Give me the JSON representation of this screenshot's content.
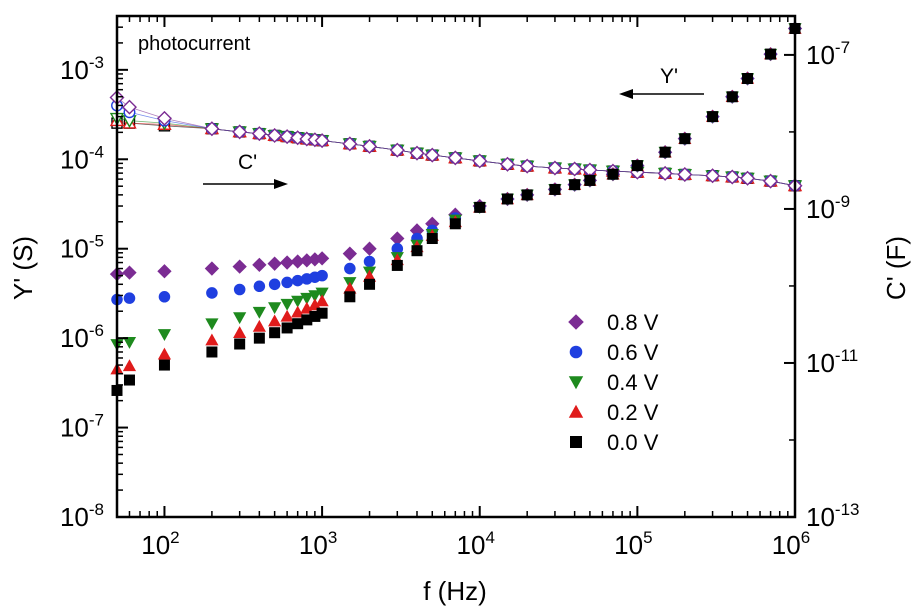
{
  "chart_data": {
    "type": "scatter",
    "x_scale": "log",
    "y_scale": "log",
    "y2_scale": "log",
    "xlim": [
      50,
      1000000
    ],
    "ylim": [
      1e-08,
      0.004
    ],
    "y2lim": [
      1e-13,
      3.2e-07
    ],
    "x_ticks": [
      {
        "base": "10",
        "exp": "2"
      },
      {
        "base": "10",
        "exp": "3"
      },
      {
        "base": "10",
        "exp": "4"
      },
      {
        "base": "10",
        "exp": "5"
      },
      {
        "base": "10",
        "exp": "6"
      }
    ],
    "y_ticks": [
      {
        "base": "10",
        "exp": "-8"
      },
      {
        "base": "10",
        "exp": "-7"
      },
      {
        "base": "10",
        "exp": "-6"
      },
      {
        "base": "10",
        "exp": "-5"
      },
      {
        "base": "10",
        "exp": "-4"
      },
      {
        "base": "10",
        "exp": "-3"
      }
    ],
    "y2_ticks": [
      {
        "base": "10",
        "exp": "-13"
      },
      {
        "base": "10",
        "exp": "-11"
      },
      {
        "base": "10",
        "exp": "-9"
      },
      {
        "base": "10",
        "exp": "-7"
      }
    ],
    "xlabel": "f (Hz)",
    "ylabel": "Y' (S)",
    "y2label": "C' (F)",
    "annotations": {
      "panel": "photocurrent",
      "cprime": "C'",
      "yprime": "Y'"
    },
    "legend_position": "center-right",
    "x": [
      50,
      60,
      100,
      200,
      300,
      400,
      500,
      600,
      700,
      800,
      900,
      1000,
      1500,
      2000,
      3000,
      4000,
      5000,
      7000,
      10000,
      15000,
      20000,
      30000,
      40000,
      50000,
      70000,
      100000,
      150000,
      200000,
      300000,
      400000,
      500000,
      700000,
      1000000
    ],
    "series": [
      {
        "name": "0.8 V",
        "marker": "diamond",
        "color": "#7b2c93",
        "values": [
          5.2e-06,
          5.4e-06,
          5.6e-06,
          6e-06,
          6.3e-06,
          6.6e-06,
          6.8e-06,
          7e-06,
          7.2e-06,
          7.4e-06,
          7.6e-06,
          7.8e-06,
          8.8e-06,
          1e-05,
          1.3e-05,
          1.6e-05,
          1.9e-05,
          2.4e-05,
          3e-05,
          3.6e-05,
          4e-05,
          4.6e-05,
          5.2e-05,
          5.8e-05,
          6.8e-05,
          8.5e-05,
          0.00012,
          0.00017,
          0.0003,
          0.0005,
          0.0008,
          0.0015,
          0.0029
        ],
        "cprime": [
          2.8e-08,
          2.1e-08,
          1.5e-08,
          1.1e-08,
          1e-08,
          9.5e-09,
          9e-09,
          8.7e-09,
          8.4e-09,
          8.1e-09,
          7.9e-09,
          7.7e-09,
          7e-09,
          6.5e-09,
          5.8e-09,
          5.3e-09,
          5e-09,
          4.6e-09,
          4.2e-09,
          3.8e-09,
          3.6e-09,
          3.4e-09,
          3.3e-09,
          3.2e-09,
          3.1e-09,
          3e-09,
          2.9e-09,
          2.8e-09,
          2.7e-09,
          2.6e-09,
          2.5e-09,
          2.3e-09,
          2e-09
        ]
      },
      {
        "name": "0.6 V",
        "marker": "circle",
        "color": "#1f3fe0",
        "values": [
          2.7e-06,
          2.8e-06,
          2.9e-06,
          3.2e-06,
          3.5e-06,
          3.8e-06,
          4e-06,
          4.2e-06,
          4.4e-06,
          4.6e-06,
          4.8e-06,
          5e-06,
          6e-06,
          7.2e-06,
          1e-05,
          1.3e-05,
          1.6e-05,
          2.2e-05,
          2.9e-05,
          3.6e-05,
          4e-05,
          4.6e-05,
          5.2e-05,
          5.8e-05,
          6.8e-05,
          8.5e-05,
          0.00012,
          0.00017,
          0.0003,
          0.0005,
          0.0008,
          0.0015,
          0.0029
        ],
        "cprime": [
          2.2e-08,
          1.8e-08,
          1.4e-08,
          1.1e-08,
          1e-08,
          9.5e-09,
          9e-09,
          8.7e-09,
          8.4e-09,
          8.1e-09,
          7.9e-09,
          7.7e-09,
          7e-09,
          6.5e-09,
          5.8e-09,
          5.3e-09,
          5e-09,
          4.6e-09,
          4.2e-09,
          3.8e-09,
          3.6e-09,
          3.4e-09,
          3.3e-09,
          3.2e-09,
          3.1e-09,
          3e-09,
          2.9e-09,
          2.8e-09,
          2.7e-09,
          2.6e-09,
          2.5e-09,
          2.3e-09,
          2e-09
        ]
      },
      {
        "name": "0.4 V",
        "marker": "triangle-down",
        "color": "#1e8a1e",
        "values": [
          8.5e-07,
          9e-07,
          1.1e-06,
          1.45e-06,
          1.7e-06,
          1.95e-06,
          2.2e-06,
          2.4e-06,
          2.6e-06,
          2.8e-06,
          3e-06,
          3.2e-06,
          4.2e-06,
          5.5e-06,
          8e-06,
          1.1e-05,
          1.45e-05,
          2.1e-05,
          2.9e-05,
          3.6e-05,
          4e-05,
          4.6e-05,
          5.2e-05,
          5.8e-05,
          6.8e-05,
          8.5e-05,
          0.00012,
          0.00017,
          0.0003,
          0.0005,
          0.0008,
          0.0015,
          0.0029
        ],
        "cprime": [
          1.5e-08,
          1.4e-08,
          1.3e-08,
          1.1e-08,
          1e-08,
          9.5e-09,
          9e-09,
          8.7e-09,
          8.4e-09,
          8.1e-09,
          7.9e-09,
          7.7e-09,
          7e-09,
          6.5e-09,
          5.8e-09,
          5.3e-09,
          5e-09,
          4.6e-09,
          4.2e-09,
          3.8e-09,
          3.6e-09,
          3.4e-09,
          3.3e-09,
          3.2e-09,
          3.1e-09,
          3e-09,
          2.9e-09,
          2.8e-09,
          2.7e-09,
          2.6e-09,
          2.5e-09,
          2.3e-09,
          2e-09
        ]
      },
      {
        "name": "0.2 V",
        "marker": "triangle-up",
        "color": "#e01b1b",
        "values": [
          4.5e-07,
          4.9e-07,
          6.6e-07,
          9.5e-07,
          1.15e-06,
          1.35e-06,
          1.55e-06,
          1.75e-06,
          1.95e-06,
          2.15e-06,
          2.35e-06,
          2.6e-06,
          3.6e-06,
          4.9e-06,
          7.5e-06,
          1.05e-05,
          1.4e-05,
          2e-05,
          2.9e-05,
          3.6e-05,
          4e-05,
          4.6e-05,
          5.2e-05,
          5.8e-05,
          6.8e-05,
          8.5e-05,
          0.00012,
          0.00017,
          0.0003,
          0.0005,
          0.0008,
          0.0015,
          0.0029
        ],
        "cprime": [
          1.4e-08,
          1.3e-08,
          1.25e-08,
          1.1e-08,
          1e-08,
          9.5e-09,
          9e-09,
          8.7e-09,
          8.4e-09,
          8.1e-09,
          7.9e-09,
          7.7e-09,
          7e-09,
          6.5e-09,
          5.8e-09,
          5.3e-09,
          5e-09,
          4.6e-09,
          4.2e-09,
          3.8e-09,
          3.6e-09,
          3.4e-09,
          3.3e-09,
          3.2e-09,
          3.1e-09,
          3e-09,
          2.9e-09,
          2.8e-09,
          2.7e-09,
          2.6e-09,
          2.5e-09,
          2.3e-09,
          2e-09
        ]
      },
      {
        "name": "0.0 V",
        "marker": "square",
        "color": "#000000",
        "values": [
          2.6e-07,
          3.4e-07,
          5e-07,
          7e-07,
          8.6e-07,
          1e-06,
          1.15e-06,
          1.3e-06,
          1.45e-06,
          1.6e-06,
          1.75e-06,
          1.9e-06,
          2.9e-06,
          4e-06,
          6.5e-06,
          9.5e-06,
          1.3e-05,
          1.9e-05,
          2.9e-05,
          3.6e-05,
          4e-05,
          4.6e-05,
          5.2e-05,
          5.8e-05,
          6.8e-05,
          8.5e-05,
          0.00012,
          0.00017,
          0.0003,
          0.0005,
          0.0008,
          0.0015,
          0.0029
        ],
        "cprime": [
          1.3e-08,
          1.3e-08,
          1.2e-08,
          1.1e-08,
          1e-08,
          9.5e-09,
          9e-09,
          8.7e-09,
          8.4e-09,
          8.1e-09,
          7.9e-09,
          7.7e-09,
          7e-09,
          6.5e-09,
          5.8e-09,
          5.3e-09,
          5e-09,
          4.6e-09,
          4.2e-09,
          3.8e-09,
          3.6e-09,
          3.4e-09,
          3.3e-09,
          3.2e-09,
          3.1e-09,
          3e-09,
          2.9e-09,
          2.8e-09,
          2.7e-09,
          2.6e-09,
          2.5e-09,
          2.3e-09,
          2e-09
        ]
      }
    ]
  }
}
